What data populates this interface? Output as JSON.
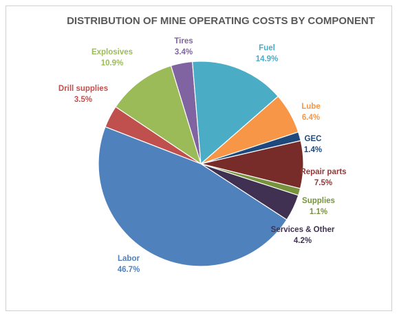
{
  "chart_data": {
    "type": "pie",
    "title": "DISTRIBUTION OF MINE OPERATING COSTS BY COMPONENT",
    "unit": "%",
    "slices": [
      {
        "label": "Tires",
        "value": 3.4,
        "display": "3.4%",
        "color": "#8064a2",
        "label_color": "#8064a2"
      },
      {
        "label": "Fuel",
        "value": 14.9,
        "display": "14.9%",
        "color": "#4bacc6",
        "label_color": "#4bacc6"
      },
      {
        "label": "Lube",
        "value": 6.4,
        "display": "6.4%",
        "color": "#f79646",
        "label_color": "#f79646"
      },
      {
        "label": "GEC",
        "value": 1.4,
        "display": "1.4%",
        "color": "#1f497d",
        "label_color": "#1f497d"
      },
      {
        "label": "Repair parts",
        "value": 7.5,
        "display": "7.5%",
        "color": "#772c2a",
        "label_color": "#953735"
      },
      {
        "label": "Supplies",
        "value": 1.1,
        "display": "1.1%",
        "color": "#77933c",
        "label_color": "#77933c"
      },
      {
        "label": "Services & Other",
        "value": 4.2,
        "display": "4.2%",
        "color": "#403152",
        "label_color": "#403152"
      },
      {
        "label": "Labor",
        "value": 46.7,
        "display": "46.7%",
        "color": "#4f81bd",
        "label_color": "#4f81bd"
      },
      {
        "label": "Drill supplies",
        "value": 3.5,
        "display": "3.5%",
        "color": "#c0504d",
        "label_color": "#c0504d"
      },
      {
        "label": "Explosives",
        "value": 10.9,
        "display": "10.9%",
        "color": "#9bbb59",
        "label_color": "#9bbb59"
      }
    ]
  }
}
